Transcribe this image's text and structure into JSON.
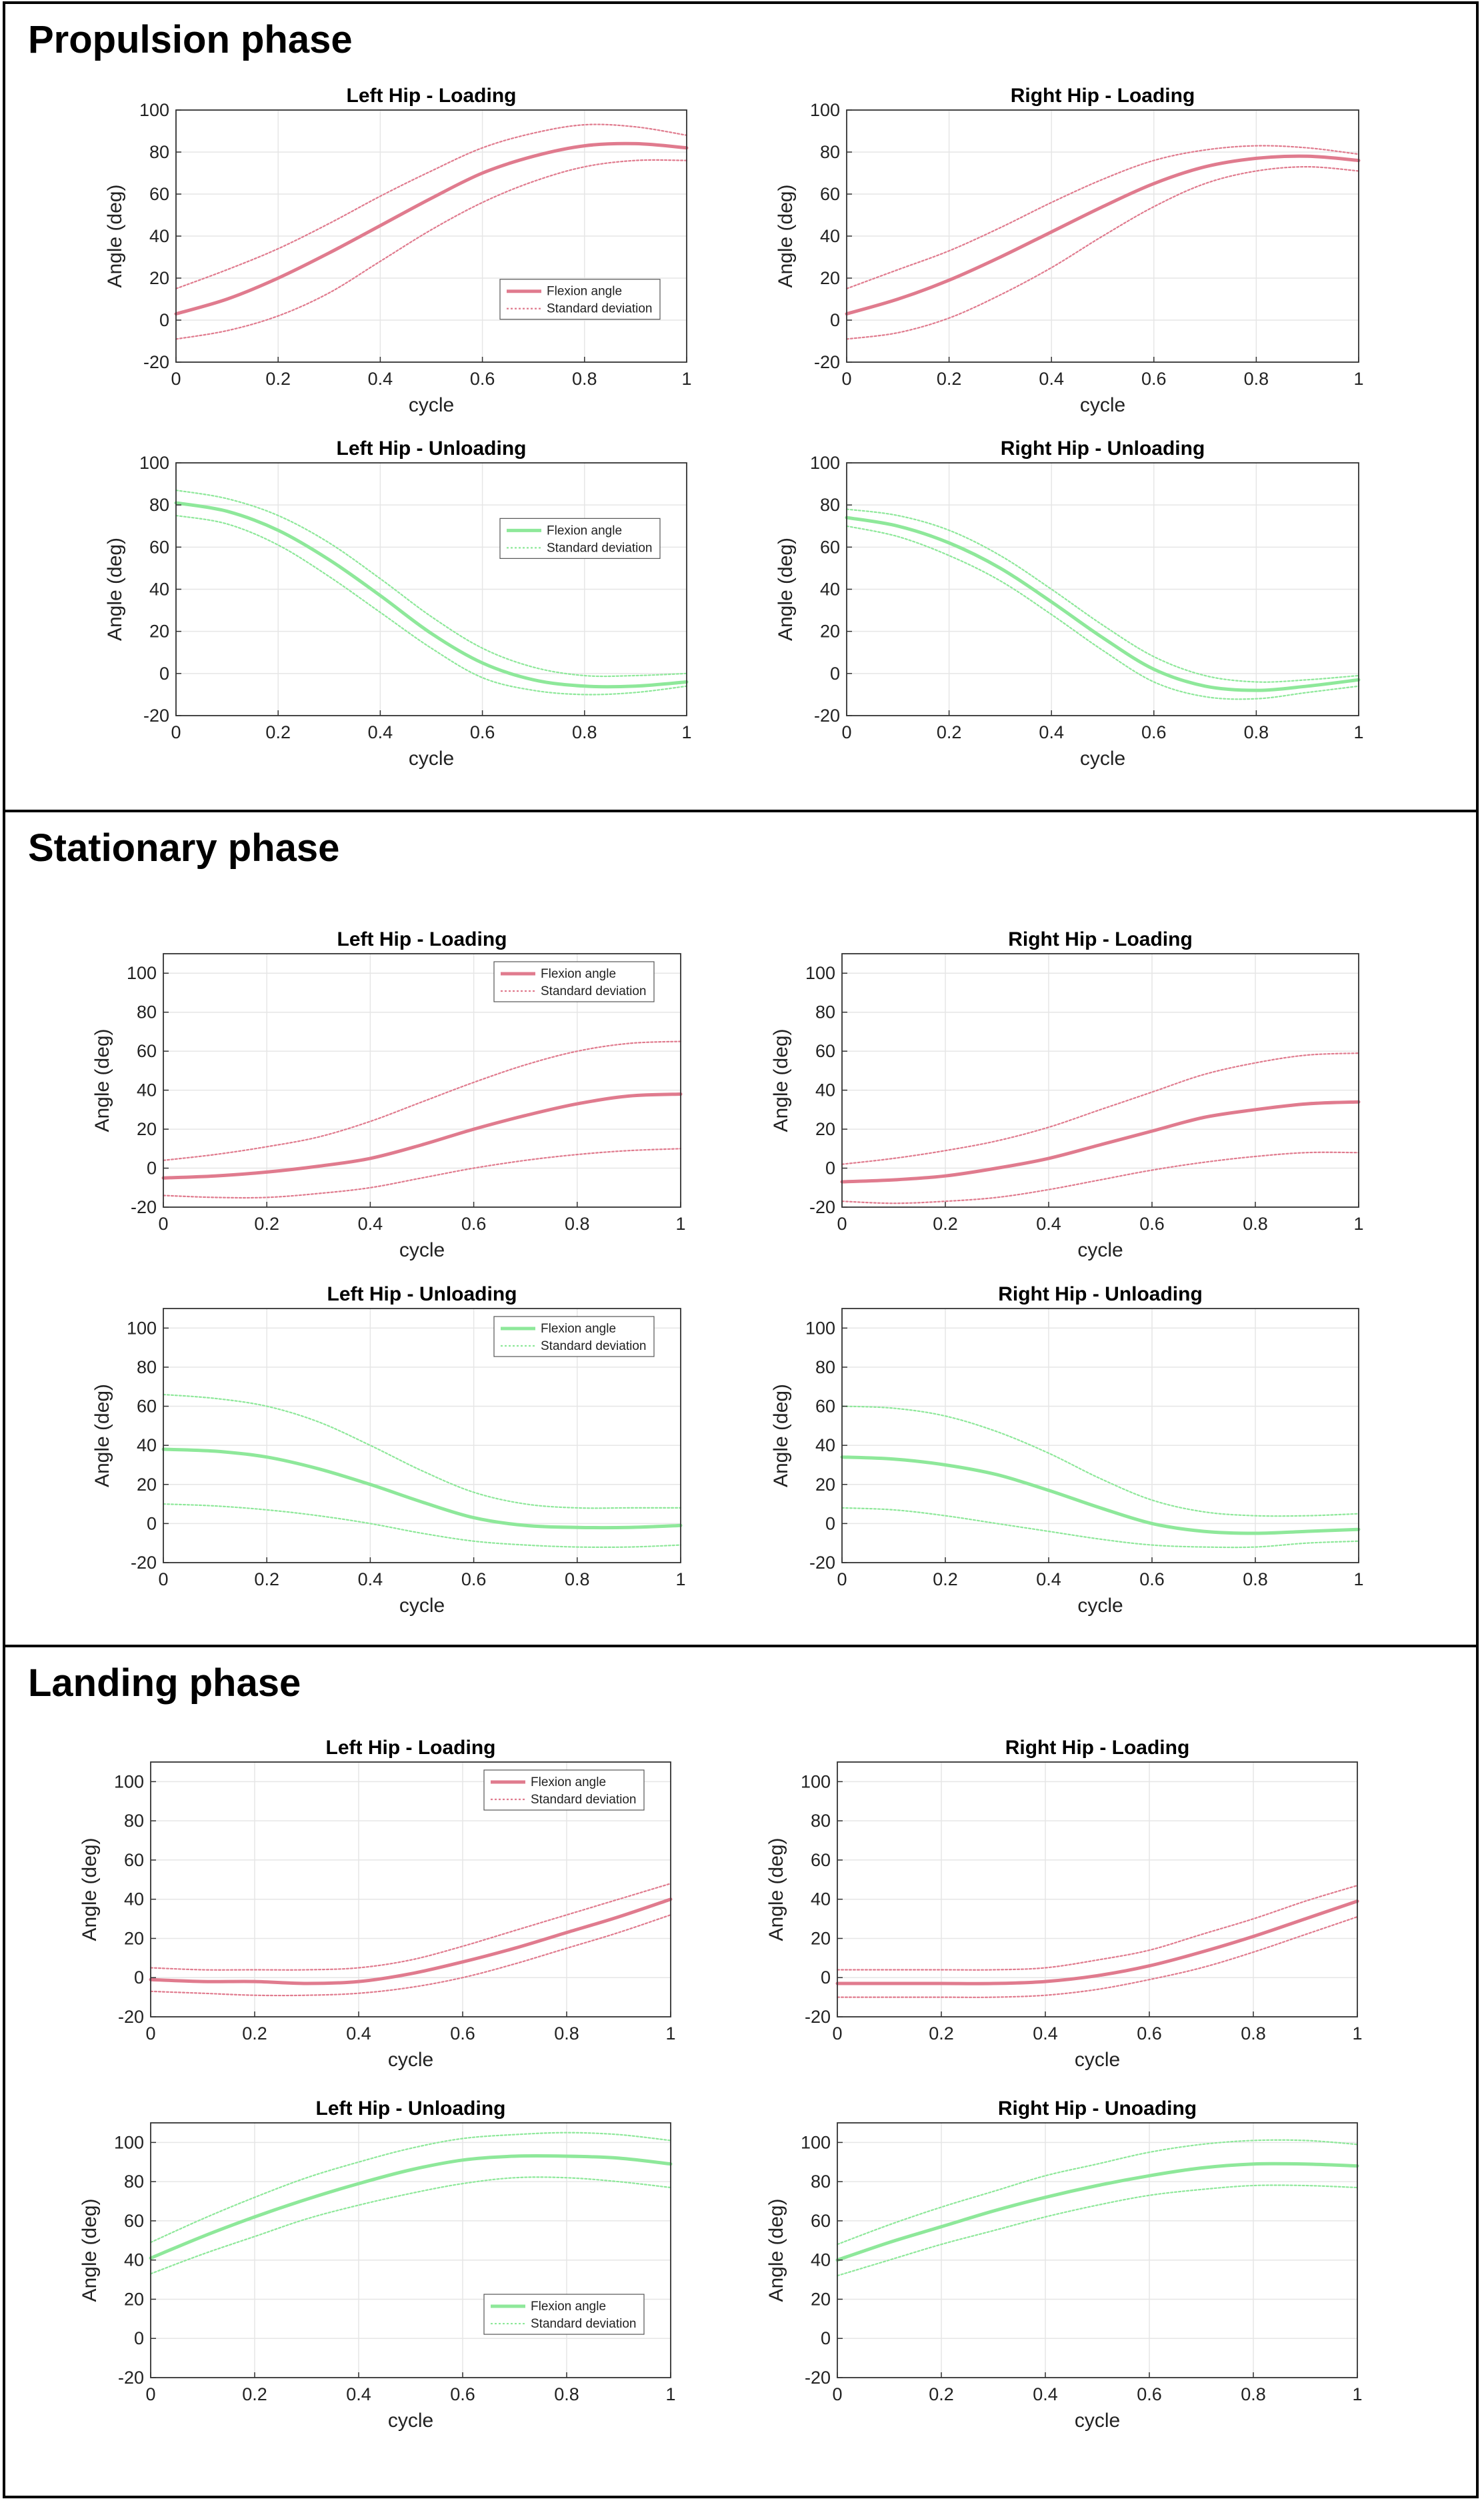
{
  "colors": {
    "loading": "#e07b8e",
    "unloading": "#8ee89a",
    "grid": "#e6e6e6",
    "axes": "#333333"
  },
  "sections": [
    {
      "title": "Propulsion phase"
    },
    {
      "title": "Stationary phase"
    },
    {
      "title": "Landing phase"
    }
  ],
  "chart_data": [
    {
      "id": "prop_lh_load",
      "type": "line",
      "title": "Left Hip - Loading",
      "xlabel": "cycle",
      "ylabel": "Angle (deg)",
      "xlim": [
        0,
        1
      ],
      "ylim": [
        -20,
        100
      ],
      "xticks": [
        0,
        0.2,
        0.4,
        0.6,
        0.8,
        1
      ],
      "yticks": [
        -20,
        0,
        20,
        40,
        60,
        80,
        100
      ],
      "color": "loading",
      "legend": [
        "Flexion angle",
        "Standard deviation"
      ],
      "legend_position": "lower-right",
      "x": [
        0,
        0.1,
        0.2,
        0.3,
        0.4,
        0.5,
        0.6,
        0.7,
        0.8,
        0.9,
        1
      ],
      "series": [
        {
          "name": "Flexion angle",
          "values": [
            3,
            10,
            20,
            32,
            45,
            58,
            70,
            78,
            83,
            84,
            82
          ]
        },
        {
          "name": "Standard deviation upper",
          "values": [
            15,
            24,
            34,
            46,
            59,
            71,
            82,
            89,
            93,
            92,
            88
          ]
        },
        {
          "name": "Standard deviation lower",
          "values": [
            -9,
            -5,
            2,
            13,
            28,
            43,
            56,
            66,
            73,
            76,
            76
          ]
        }
      ]
    },
    {
      "id": "prop_rh_load",
      "type": "line",
      "title": "Right Hip - Loading",
      "xlabel": "cycle",
      "ylabel": "Angle (deg)",
      "xlim": [
        0,
        1
      ],
      "ylim": [
        -20,
        100
      ],
      "xticks": [
        0,
        0.2,
        0.4,
        0.6,
        0.8,
        1
      ],
      "yticks": [
        -20,
        0,
        20,
        40,
        60,
        80,
        100
      ],
      "color": "loading",
      "legend": [],
      "legend_position": "",
      "x": [
        0,
        0.1,
        0.2,
        0.3,
        0.4,
        0.5,
        0.6,
        0.7,
        0.8,
        0.9,
        1
      ],
      "series": [
        {
          "name": "Flexion angle",
          "values": [
            3,
            10,
            19,
            30,
            42,
            54,
            65,
            73,
            77,
            78,
            76
          ]
        },
        {
          "name": "Standard deviation upper",
          "values": [
            15,
            24,
            33,
            44,
            56,
            67,
            76,
            81,
            83,
            82,
            79
          ]
        },
        {
          "name": "Standard deviation lower",
          "values": [
            -9,
            -6,
            1,
            12,
            25,
            40,
            54,
            65,
            71,
            73,
            71
          ]
        }
      ]
    },
    {
      "id": "prop_lh_unload",
      "type": "line",
      "title": "Left Hip - Unloading",
      "xlabel": "cycle",
      "ylabel": "Angle (deg)",
      "xlim": [
        0,
        1
      ],
      "ylim": [
        -20,
        100
      ],
      "xticks": [
        0,
        0.2,
        0.4,
        0.6,
        0.8,
        1
      ],
      "yticks": [
        -20,
        0,
        20,
        40,
        60,
        80,
        100
      ],
      "color": "unloading",
      "legend": [
        "Flexion angle",
        "Standard deviation"
      ],
      "legend_position": "center-right",
      "x": [
        0,
        0.1,
        0.2,
        0.3,
        0.4,
        0.5,
        0.6,
        0.7,
        0.8,
        0.9,
        1
      ],
      "series": [
        {
          "name": "Flexion angle",
          "values": [
            81,
            77,
            68,
            54,
            37,
            19,
            5,
            -3,
            -6,
            -6,
            -4
          ]
        },
        {
          "name": "Standard deviation upper",
          "values": [
            87,
            83,
            75,
            62,
            45,
            27,
            12,
            3,
            -1,
            -1,
            0
          ]
        },
        {
          "name": "Standard deviation lower",
          "values": [
            75,
            71,
            61,
            46,
            29,
            12,
            -2,
            -8,
            -10,
            -9,
            -6
          ]
        }
      ]
    },
    {
      "id": "prop_rh_unload",
      "type": "line",
      "title": "Right Hip - Unloading",
      "xlabel": "cycle",
      "ylabel": "Angle (deg)",
      "xlim": [
        0,
        1
      ],
      "ylim": [
        -20,
        100
      ],
      "xticks": [
        0,
        0.2,
        0.4,
        0.6,
        0.8,
        1
      ],
      "yticks": [
        -20,
        0,
        20,
        40,
        60,
        80,
        100
      ],
      "color": "unloading",
      "legend": [],
      "legend_position": "",
      "x": [
        0,
        0.1,
        0.2,
        0.3,
        0.4,
        0.5,
        0.6,
        0.7,
        0.8,
        0.9,
        1
      ],
      "series": [
        {
          "name": "Flexion angle",
          "values": [
            74,
            70,
            62,
            50,
            34,
            17,
            2,
            -6,
            -8,
            -6,
            -3
          ]
        },
        {
          "name": "Standard deviation upper",
          "values": [
            78,
            75,
            68,
            56,
            40,
            23,
            8,
            -1,
            -4,
            -3,
            -1
          ]
        },
        {
          "name": "Standard deviation lower",
          "values": [
            70,
            65,
            56,
            44,
            28,
            11,
            -4,
            -11,
            -12,
            -9,
            -6
          ]
        }
      ]
    },
    {
      "id": "stat_lh_load",
      "type": "line",
      "title": "Left Hip - Loading",
      "xlabel": "cycle",
      "ylabel": "Angle (deg)",
      "xlim": [
        0,
        1
      ],
      "ylim": [
        -20,
        110
      ],
      "xticks": [
        0,
        0.2,
        0.4,
        0.6,
        0.8,
        1
      ],
      "yticks": [
        -20,
        0,
        20,
        40,
        60,
        80,
        100
      ],
      "color": "loading",
      "legend": [
        "Flexion angle",
        "Standard deviation"
      ],
      "legend_position": "top-right",
      "x": [
        0,
        0.1,
        0.2,
        0.3,
        0.4,
        0.5,
        0.6,
        0.7,
        0.8,
        0.9,
        1
      ],
      "series": [
        {
          "name": "Flexion angle",
          "values": [
            -5,
            -4,
            -2,
            1,
            5,
            12,
            20,
            27,
            33,
            37,
            38
          ]
        },
        {
          "name": "Standard deviation upper",
          "values": [
            4,
            7,
            11,
            16,
            24,
            34,
            44,
            53,
            60,
            64,
            65
          ]
        },
        {
          "name": "Standard deviation lower",
          "values": [
            -14,
            -15,
            -15,
            -13,
            -10,
            -5,
            0,
            4,
            7,
            9,
            10
          ]
        }
      ]
    },
    {
      "id": "stat_rh_load",
      "type": "line",
      "title": "Right Hip - Loading",
      "xlabel": "cycle",
      "ylabel": "Angle (deg)",
      "xlim": [
        0,
        1
      ],
      "ylim": [
        -20,
        110
      ],
      "xticks": [
        0,
        0.2,
        0.4,
        0.6,
        0.8,
        1
      ],
      "yticks": [
        -20,
        0,
        20,
        40,
        60,
        80,
        100
      ],
      "color": "loading",
      "legend": [],
      "legend_position": "",
      "x": [
        0,
        0.1,
        0.2,
        0.3,
        0.4,
        0.5,
        0.6,
        0.7,
        0.8,
        0.9,
        1
      ],
      "series": [
        {
          "name": "Flexion angle",
          "values": [
            -7,
            -6,
            -4,
            0,
            5,
            12,
            19,
            26,
            30,
            33,
            34
          ]
        },
        {
          "name": "Standard deviation upper",
          "values": [
            2,
            5,
            9,
            14,
            21,
            30,
            39,
            48,
            54,
            58,
            59
          ]
        },
        {
          "name": "Standard deviation lower",
          "values": [
            -17,
            -18,
            -17,
            -15,
            -11,
            -6,
            -1,
            3,
            6,
            8,
            8
          ]
        }
      ]
    },
    {
      "id": "stat_lh_unload",
      "type": "line",
      "title": "Left Hip - Unloading",
      "xlabel": "cycle",
      "ylabel": "Angle (deg)",
      "xlim": [
        0,
        1
      ],
      "ylim": [
        -20,
        110
      ],
      "xticks": [
        0,
        0.2,
        0.4,
        0.6,
        0.8,
        1
      ],
      "yticks": [
        -20,
        0,
        20,
        40,
        60,
        80,
        100
      ],
      "color": "unloading",
      "legend": [
        "Flexion angle",
        "Standard deviation"
      ],
      "legend_position": "top-right",
      "x": [
        0,
        0.1,
        0.2,
        0.3,
        0.4,
        0.5,
        0.6,
        0.7,
        0.8,
        0.9,
        1
      ],
      "series": [
        {
          "name": "Flexion angle",
          "values": [
            38,
            37,
            34,
            28,
            20,
            11,
            3,
            -1,
            -2,
            -2,
            -1
          ]
        },
        {
          "name": "Standard deviation upper",
          "values": [
            66,
            64,
            60,
            52,
            40,
            27,
            16,
            10,
            8,
            8,
            8
          ]
        },
        {
          "name": "Standard deviation lower",
          "values": [
            10,
            9,
            7,
            4,
            0,
            -5,
            -9,
            -11,
            -12,
            -12,
            -11
          ]
        }
      ]
    },
    {
      "id": "stat_rh_unload",
      "type": "line",
      "title": "Right Hip - Unloading",
      "xlabel": "cycle",
      "ylabel": "Angle (deg)",
      "xlim": [
        0,
        1
      ],
      "ylim": [
        -20,
        110
      ],
      "xticks": [
        0,
        0.2,
        0.4,
        0.6,
        0.8,
        1
      ],
      "yticks": [
        -20,
        0,
        20,
        40,
        60,
        80,
        100
      ],
      "color": "unloading",
      "legend": [],
      "legend_position": "",
      "x": [
        0,
        0.1,
        0.2,
        0.3,
        0.4,
        0.5,
        0.6,
        0.7,
        0.8,
        0.9,
        1
      ],
      "series": [
        {
          "name": "Flexion angle",
          "values": [
            34,
            33,
            30,
            25,
            17,
            8,
            0,
            -4,
            -5,
            -4,
            -3
          ]
        },
        {
          "name": "Standard deviation upper",
          "values": [
            60,
            59,
            55,
            47,
            36,
            23,
            12,
            6,
            4,
            4,
            5
          ]
        },
        {
          "name": "Standard deviation lower",
          "values": [
            8,
            7,
            4,
            0,
            -4,
            -8,
            -11,
            -12,
            -12,
            -10,
            -9
          ]
        }
      ]
    },
    {
      "id": "land_lh_load",
      "type": "line",
      "title": "Left Hip - Loading",
      "xlabel": "cycle",
      "ylabel": "Angle (deg)",
      "xlim": [
        0,
        1
      ],
      "ylim": [
        -20,
        110
      ],
      "xticks": [
        0,
        0.2,
        0.4,
        0.6,
        0.8,
        1
      ],
      "yticks": [
        -20,
        0,
        20,
        40,
        60,
        80,
        100
      ],
      "color": "loading",
      "legend": [
        "Flexion angle",
        "Standard deviation"
      ],
      "legend_position": "top-right",
      "x": [
        0,
        0.1,
        0.2,
        0.3,
        0.4,
        0.5,
        0.6,
        0.7,
        0.8,
        0.9,
        1
      ],
      "series": [
        {
          "name": "Flexion angle",
          "values": [
            -1,
            -2,
            -2,
            -3,
            -2,
            2,
            8,
            15,
            23,
            31,
            40
          ]
        },
        {
          "name": "Standard deviation upper",
          "values": [
            5,
            4,
            4,
            4,
            5,
            9,
            16,
            24,
            32,
            40,
            48
          ]
        },
        {
          "name": "Standard deviation lower",
          "values": [
            -7,
            -8,
            -9,
            -9,
            -8,
            -5,
            0,
            7,
            15,
            23,
            32
          ]
        }
      ]
    },
    {
      "id": "land_rh_load",
      "type": "line",
      "title": "Right Hip - Loading",
      "xlabel": "cycle",
      "ylabel": "Angle (deg)",
      "xlim": [
        0,
        1
      ],
      "ylim": [
        -20,
        110
      ],
      "xticks": [
        0,
        0.2,
        0.4,
        0.6,
        0.8,
        1
      ],
      "yticks": [
        -20,
        0,
        20,
        40,
        60,
        80,
        100
      ],
      "color": "loading",
      "legend": [],
      "legend_position": "",
      "x": [
        0,
        0.1,
        0.2,
        0.3,
        0.4,
        0.5,
        0.6,
        0.7,
        0.8,
        0.9,
        1
      ],
      "series": [
        {
          "name": "Flexion angle",
          "values": [
            -3,
            -3,
            -3,
            -3,
            -2,
            1,
            6,
            13,
            21,
            30,
            39
          ]
        },
        {
          "name": "Standard deviation upper",
          "values": [
            4,
            4,
            4,
            4,
            5,
            9,
            14,
            22,
            30,
            39,
            47
          ]
        },
        {
          "name": "Standard deviation lower",
          "values": [
            -10,
            -10,
            -10,
            -10,
            -9,
            -6,
            -1,
            5,
            13,
            22,
            31
          ]
        }
      ]
    },
    {
      "id": "land_lh_unload",
      "type": "line",
      "title": "Left Hip - Unloading",
      "xlabel": "cycle",
      "ylabel": "Angle (deg)",
      "xlim": [
        0,
        1
      ],
      "ylim": [
        -20,
        110
      ],
      "xticks": [
        0,
        0.2,
        0.4,
        0.6,
        0.8,
        1
      ],
      "yticks": [
        -20,
        0,
        20,
        40,
        60,
        80,
        100
      ],
      "color": "unloading",
      "legend": [
        "Flexion angle",
        "Standard deviation"
      ],
      "legend_position": "lower-right",
      "x": [
        0,
        0.1,
        0.2,
        0.3,
        0.4,
        0.5,
        0.6,
        0.7,
        0.8,
        0.9,
        1
      ],
      "series": [
        {
          "name": "Flexion angle",
          "values": [
            41,
            52,
            62,
            71,
            79,
            86,
            91,
            93,
            93,
            92,
            89
          ]
        },
        {
          "name": "Standard deviation upper",
          "values": [
            49,
            61,
            72,
            82,
            90,
            97,
            102,
            104,
            105,
            104,
            101
          ]
        },
        {
          "name": "Standard deviation lower",
          "values": [
            33,
            43,
            52,
            61,
            68,
            74,
            79,
            82,
            82,
            80,
            77
          ]
        }
      ]
    },
    {
      "id": "land_rh_unload",
      "type": "line",
      "title": "Right Hip - Unoading",
      "xlabel": "cycle",
      "ylabel": "Angle (deg)",
      "xlim": [
        0,
        1
      ],
      "ylim": [
        -20,
        110
      ],
      "xticks": [
        0,
        0.2,
        0.4,
        0.6,
        0.8,
        1
      ],
      "yticks": [
        -20,
        0,
        20,
        40,
        60,
        80,
        100
      ],
      "color": "unloading",
      "legend": [],
      "legend_position": "",
      "x": [
        0,
        0.1,
        0.2,
        0.3,
        0.4,
        0.5,
        0.6,
        0.7,
        0.8,
        0.9,
        1
      ],
      "series": [
        {
          "name": "Flexion angle",
          "values": [
            40,
            49,
            57,
            65,
            72,
            78,
            83,
            87,
            89,
            89,
            88
          ]
        },
        {
          "name": "Standard deviation upper",
          "values": [
            48,
            58,
            67,
            75,
            83,
            89,
            95,
            99,
            101,
            101,
            99
          ]
        },
        {
          "name": "Standard deviation lower",
          "values": [
            32,
            40,
            48,
            55,
            62,
            68,
            73,
            76,
            78,
            78,
            77
          ]
        }
      ]
    }
  ]
}
